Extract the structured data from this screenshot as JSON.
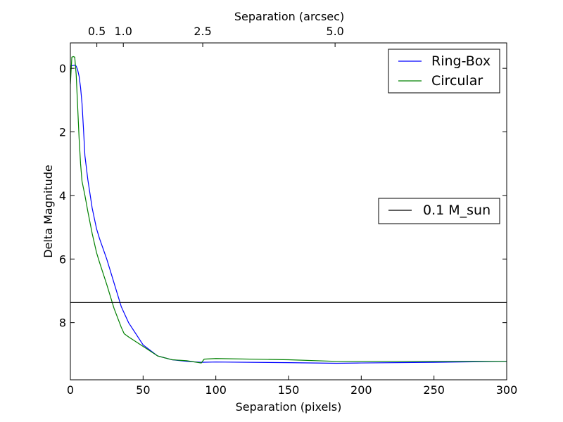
{
  "chart_data": {
    "type": "line",
    "xlabel": "Separation (pixels)",
    "ylabel": "Delta Magnitude",
    "top_xlabel": "Separation (arcsec)",
    "xlim": [
      0,
      300
    ],
    "ylim": [
      9.8,
      -0.8
    ],
    "y_inverted": true,
    "grid": false,
    "x_ticks": [
      0,
      50,
      100,
      150,
      200,
      250,
      300
    ],
    "x_tick_labels": [
      "0",
      "50",
      "100",
      "150",
      "200",
      "250",
      "300"
    ],
    "y_ticks": [
      0,
      2,
      4,
      6,
      8
    ],
    "y_tick_labels": [
      "0",
      "2",
      "4",
      "6",
      "8"
    ],
    "top_x_ticks": [
      {
        "label": "0.5",
        "x": 18.2
      },
      {
        "label": "1.0",
        "x": 36.4
      },
      {
        "label": "2.5",
        "x": 91.0
      },
      {
        "label": "5.0",
        "x": 182.0
      }
    ],
    "series": [
      {
        "name": "Ring-Box",
        "color": "#0000ff",
        "x": [
          0,
          1,
          2,
          3,
          4,
          5,
          6,
          7,
          8,
          9,
          10,
          12,
          15,
          18,
          20,
          25,
          30,
          35,
          40,
          50,
          60,
          70,
          80,
          90,
          100,
          150,
          183,
          200,
          250,
          300
        ],
        "y": [
          -0.07,
          -0.08,
          -0.09,
          -0.1,
          -0.07,
          0.05,
          0.25,
          0.6,
          1.1,
          1.9,
          2.75,
          3.5,
          4.4,
          5.05,
          5.35,
          6.0,
          6.75,
          7.5,
          8.0,
          8.7,
          9.05,
          9.17,
          9.22,
          9.25,
          9.24,
          9.26,
          9.28,
          9.27,
          9.25,
          9.22
        ]
      },
      {
        "name": "Circular",
        "color": "#008000",
        "x": [
          0,
          1,
          2,
          3,
          4,
          5,
          6,
          7,
          8,
          10,
          12,
          15,
          18,
          20,
          25,
          30,
          35,
          37,
          40,
          50,
          60,
          70,
          80,
          90,
          92,
          100,
          150,
          183,
          200,
          250,
          300
        ],
        "y": [
          0.5,
          -0.35,
          -0.37,
          -0.35,
          0.2,
          1.2,
          2.2,
          3.0,
          3.55,
          4.0,
          4.5,
          5.2,
          5.8,
          6.1,
          6.8,
          7.55,
          8.15,
          8.35,
          8.45,
          8.75,
          9.05,
          9.17,
          9.2,
          9.27,
          9.15,
          9.13,
          9.17,
          9.22,
          9.22,
          9.22,
          9.22
        ]
      }
    ],
    "hline": {
      "name": "0.1 M_sun",
      "y": 7.37,
      "color": "#000000"
    },
    "legends": [
      {
        "placement": "top-right",
        "entries": [
          "Ring-Box",
          "Circular"
        ]
      },
      {
        "placement": "center-right",
        "entries": [
          "0.1 M_sun"
        ]
      }
    ]
  }
}
